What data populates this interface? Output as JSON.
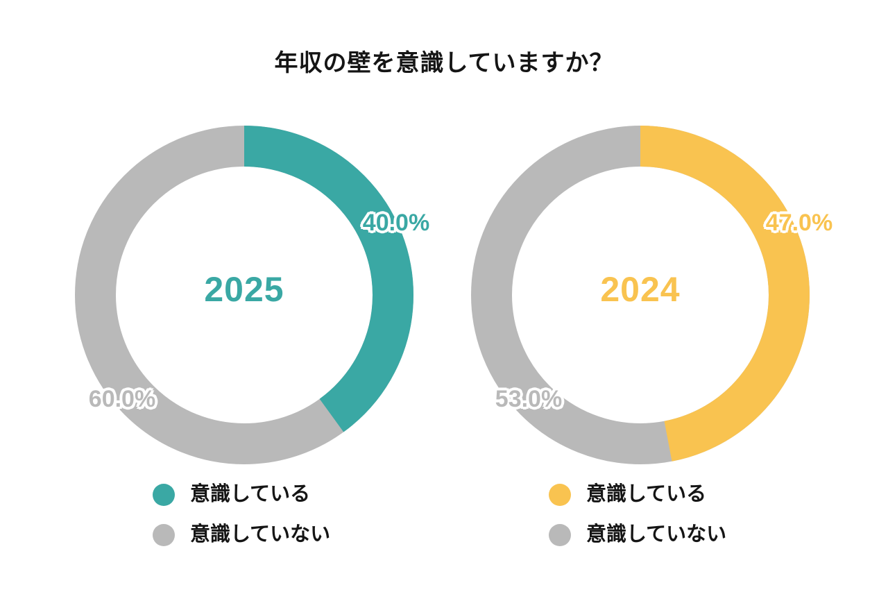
{
  "title": "年収の壁を意識していますか？",
  "colors": {
    "background": "#FFFFFF",
    "title_text": "#151515",
    "legend_text": "#151515",
    "teal": "#3AA8A4",
    "yellow": "#F9C350",
    "gray": "#B9B9B9"
  },
  "chart_data": [
    {
      "type": "pie",
      "subtype": "donut",
      "center_label": "2025",
      "center_label_color": "#3AA8A4",
      "start_angle_deg": 0,
      "direction": "clockwise",
      "segments": [
        {
          "label": "意識している",
          "value": 40.0,
          "display": "40.0%",
          "color": "#3AA8A4"
        },
        {
          "label": "意識していない",
          "value": 60.0,
          "display": "60.0%",
          "color": "#B9B9B9"
        }
      ],
      "legend": [
        {
          "label": "意識している",
          "color": "#3AA8A4"
        },
        {
          "label": "意識していない",
          "color": "#B9B9B9"
        }
      ]
    },
    {
      "type": "pie",
      "subtype": "donut",
      "center_label": "2024",
      "center_label_color": "#F9C350",
      "start_angle_deg": 0,
      "direction": "clockwise",
      "segments": [
        {
          "label": "意識している",
          "value": 47.0,
          "display": "47.0%",
          "color": "#F9C350"
        },
        {
          "label": "意識していない",
          "value": 53.0,
          "display": "53.0%",
          "color": "#B9B9B9"
        }
      ],
      "legend": [
        {
          "label": "意識している",
          "color": "#F9C350"
        },
        {
          "label": "意識していない",
          "color": "#B9B9B9"
        }
      ]
    }
  ]
}
